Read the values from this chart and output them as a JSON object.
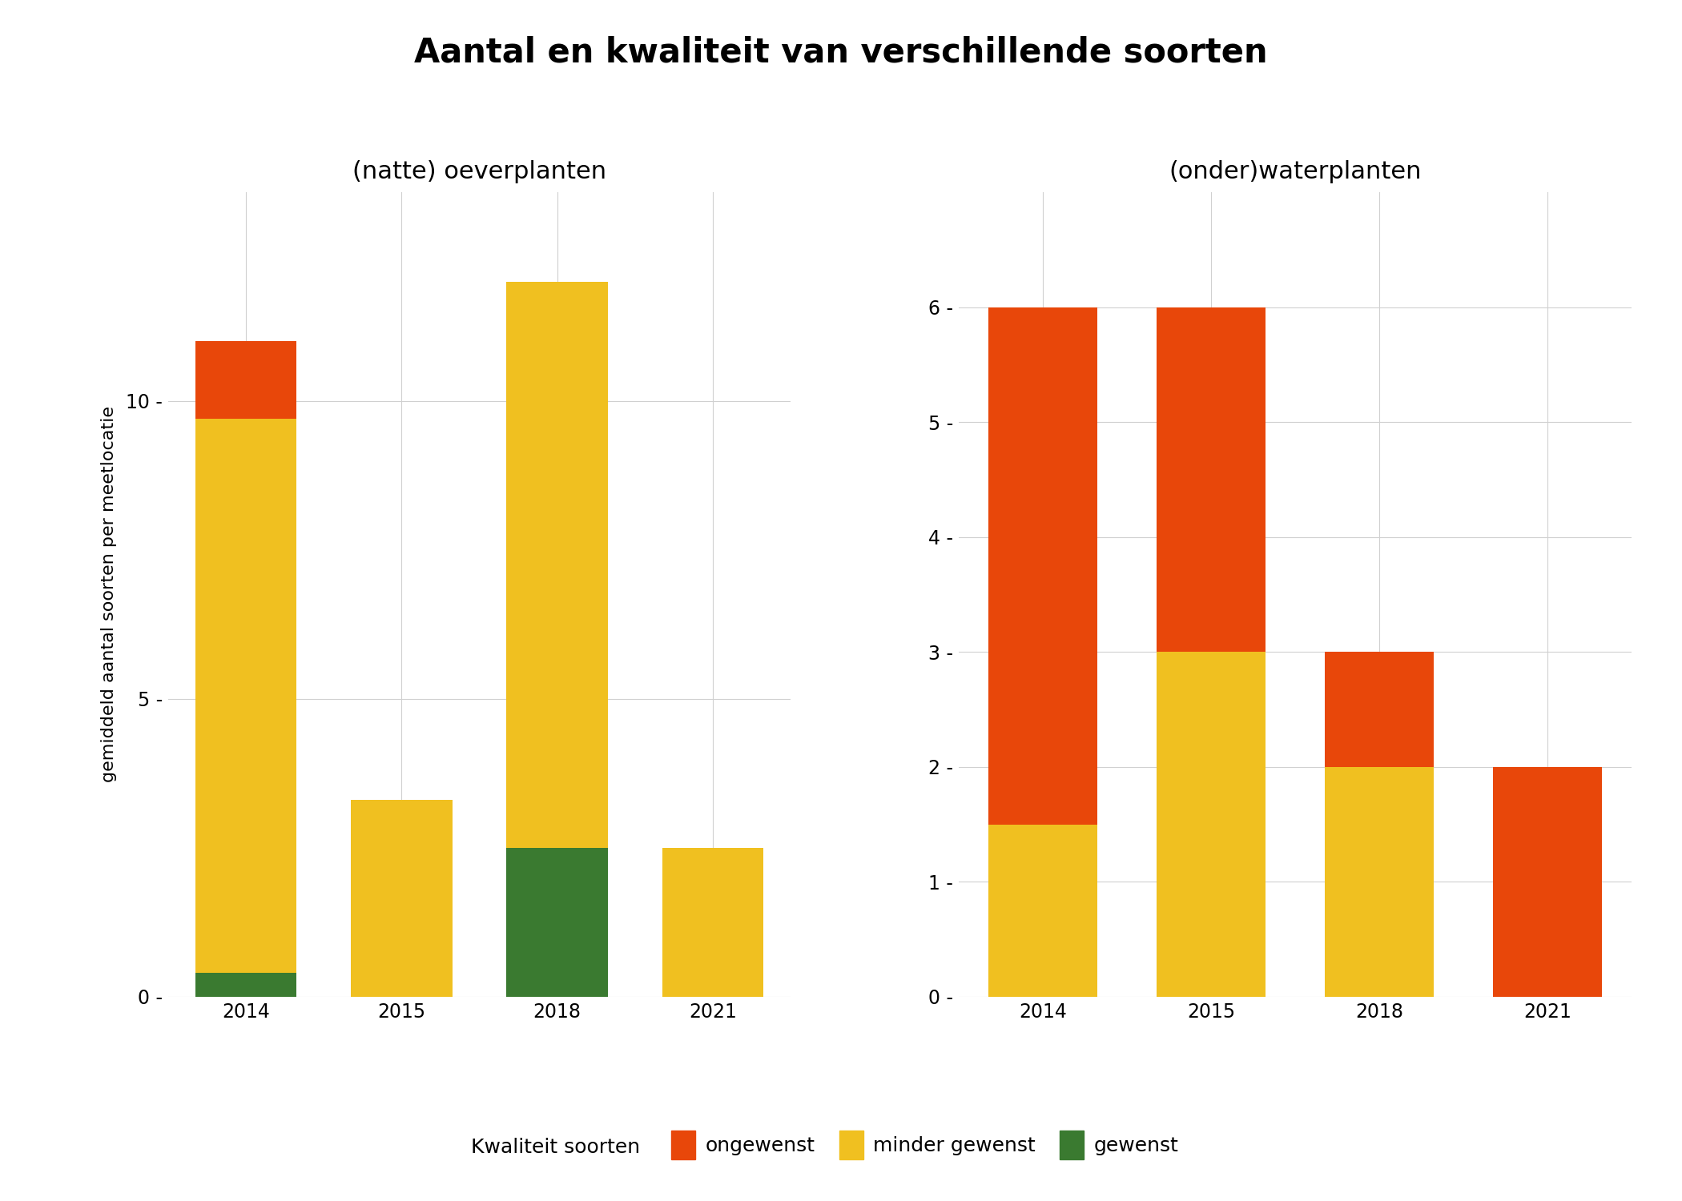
{
  "title": "Aantal en kwaliteit van verschillende soorten",
  "subtitle_left": "(natte) oeverplanten",
  "subtitle_right": "(onder)waterplanten",
  "ylabel": "gemiddeld aantal soorten per meetlocatie",
  "legend_title": "Kwaliteit soorten",
  "legend_items": [
    "ongewenst",
    "minder gewenst",
    "gewenst"
  ],
  "colors": {
    "ongewenst": "#E8470A",
    "minder_gewenst": "#F0C020",
    "gewenst": "#3A7A30"
  },
  "left": {
    "years": [
      "2014",
      "2015",
      "2018",
      "2021"
    ],
    "gewenst": [
      0.4,
      0.0,
      2.5,
      0.0
    ],
    "minder_gewenst": [
      9.3,
      3.3,
      9.5,
      2.5
    ],
    "ongewenst": [
      1.3,
      0.0,
      0.0,
      0.0
    ]
  },
  "right": {
    "years": [
      "2014",
      "2015",
      "2018",
      "2021"
    ],
    "gewenst": [
      0.0,
      0.0,
      0.0,
      0.0
    ],
    "minder_gewenst": [
      1.5,
      3.0,
      2.0,
      0.0
    ],
    "ongewenst": [
      4.5,
      3.0,
      1.0,
      2.0
    ]
  },
  "left_ylim": [
    0,
    13.5
  ],
  "right_ylim": [
    0,
    7.0
  ],
  "left_yticks": [
    0,
    5,
    10
  ],
  "right_yticks": [
    0,
    1,
    2,
    3,
    4,
    5,
    6
  ],
  "background_color": "#FFFFFF",
  "grid_color": "#D0D0D0",
  "title_fontsize": 30,
  "subtitle_fontsize": 22,
  "axis_label_fontsize": 16,
  "tick_fontsize": 17,
  "legend_fontsize": 18,
  "legend_title_fontsize": 18
}
